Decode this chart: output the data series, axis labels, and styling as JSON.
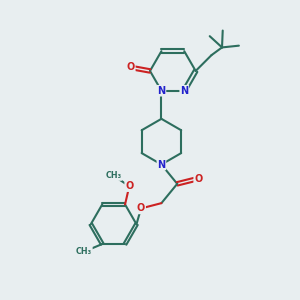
{
  "bg_color": "#e8eef0",
  "bond_color": "#2d6e5e",
  "N_color": "#2222cc",
  "O_color": "#cc2222",
  "lw": 1.5,
  "dbo": 0.055,
  "figsize": [
    3.0,
    3.0
  ],
  "dpi": 100,
  "xlim": [
    0.0,
    6.5
  ],
  "ylim": [
    0.0,
    8.5
  ]
}
